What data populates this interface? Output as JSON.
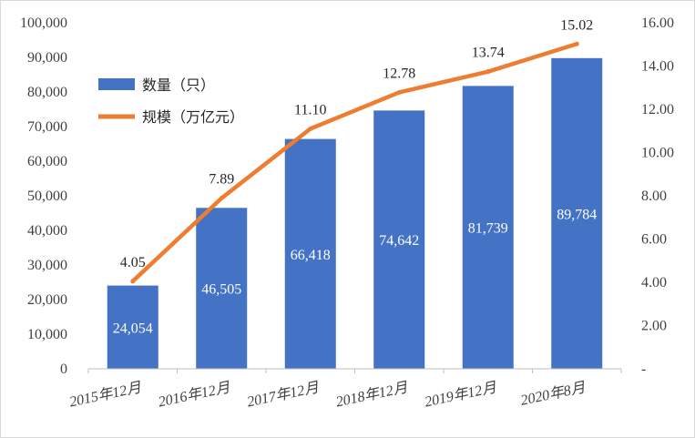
{
  "chart_data": {
    "type": "bar",
    "categories": [
      "2015年12月",
      "2016年12月",
      "2017年12月",
      "2018年12月",
      "2019年12月",
      "2020年8月"
    ],
    "series": [
      {
        "name": "数量（只）",
        "type": "bar",
        "axis": "left",
        "color": "#4472C4",
        "values": [
          24054,
          46505,
          66418,
          74642,
          81739,
          89784
        ],
        "labels": [
          "24,054",
          "46,505",
          "66,418",
          "74,642",
          "81,739",
          "89,784"
        ]
      },
      {
        "name": "规模（万亿元）",
        "type": "line",
        "axis": "right",
        "color": "#ED7D31",
        "values": [
          4.05,
          7.89,
          11.1,
          12.78,
          13.74,
          15.02
        ],
        "labels": [
          "4.05",
          "7.89",
          "11.10",
          "12.78",
          "13.74",
          "15.02"
        ]
      }
    ],
    "y_left": {
      "lim": [
        0,
        100000
      ],
      "ticks": [
        0,
        10000,
        20000,
        30000,
        40000,
        50000,
        60000,
        70000,
        80000,
        90000,
        100000
      ],
      "tick_labels": [
        "0",
        "10,000",
        "20,000",
        "30,000",
        "40,000",
        "50,000",
        "60,000",
        "70,000",
        "80,000",
        "90,000",
        "100,000"
      ]
    },
    "y_right": {
      "lim": [
        0,
        16
      ],
      "ticks": [
        0,
        2,
        4,
        6,
        8,
        10,
        12,
        14,
        16
      ],
      "tick_labels": [
        "-",
        "2.00",
        "4.00",
        "6.00",
        "8.00",
        "10.00",
        "12.00",
        "14.00",
        "16.00"
      ]
    },
    "title": "",
    "xlabel": "",
    "ylabel": "",
    "grid": false,
    "legend": "top-left"
  }
}
